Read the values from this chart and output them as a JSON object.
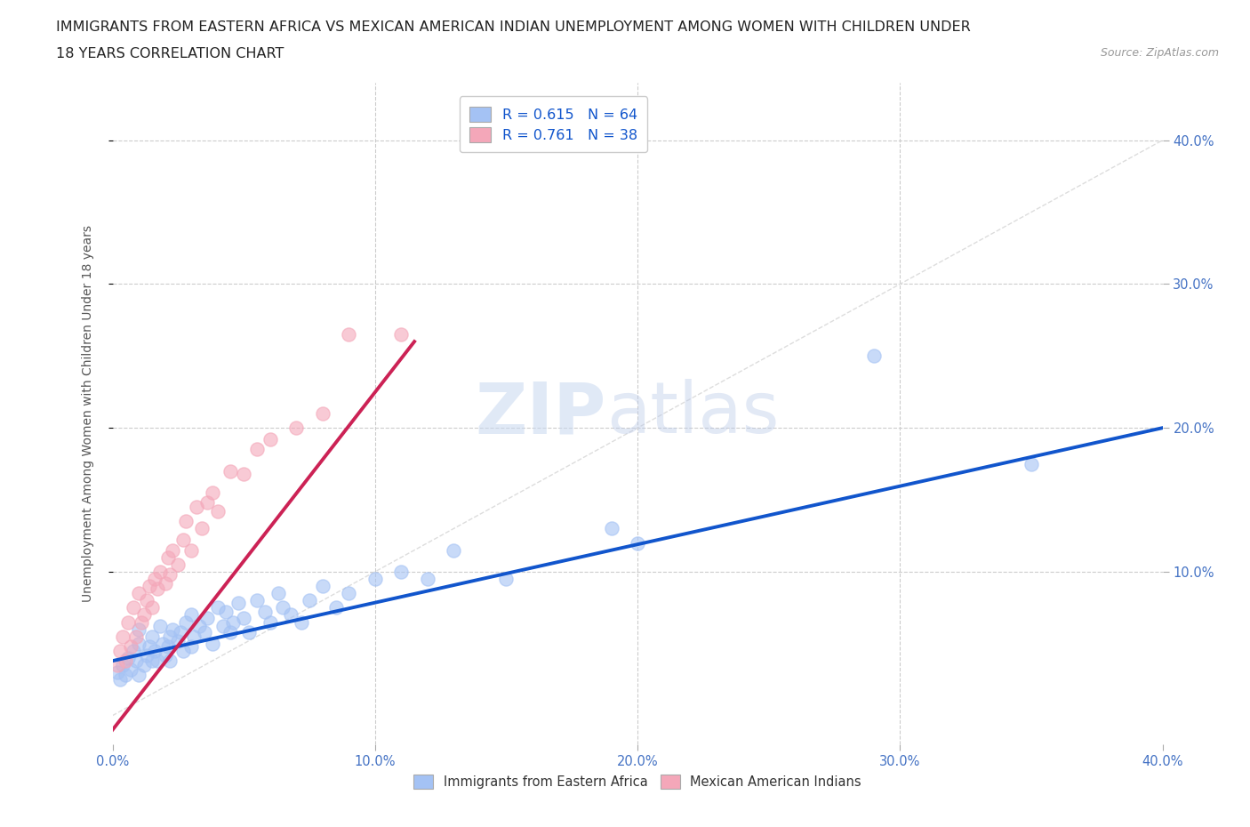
{
  "title_line1": "IMMIGRANTS FROM EASTERN AFRICA VS MEXICAN AMERICAN INDIAN UNEMPLOYMENT AMONG WOMEN WITH CHILDREN UNDER",
  "title_line2": "18 YEARS CORRELATION CHART",
  "source": "Source: ZipAtlas.com",
  "ylabel": "Unemployment Among Women with Children Under 18 years",
  "xlim": [
    0.0,
    0.4
  ],
  "ylim": [
    -0.02,
    0.44
  ],
  "xticks": [
    0.0,
    0.1,
    0.2,
    0.3,
    0.4
  ],
  "yticks": [
    0.1,
    0.2,
    0.3,
    0.4
  ],
  "xticklabels": [
    "0.0%",
    "10.0%",
    "20.0%",
    "30.0%",
    "40.0%"
  ],
  "yticklabels": [
    "10.0%",
    "20.0%",
    "30.0%",
    "40.0%"
  ],
  "blue_R": 0.615,
  "blue_N": 64,
  "pink_R": 0.761,
  "pink_N": 38,
  "blue_color": "#a4c2f4",
  "pink_color": "#f4a7b9",
  "blue_line_color": "#1155cc",
  "pink_line_color": "#cc2255",
  "legend_label_blue": "Immigrants from Eastern Africa",
  "legend_label_pink": "Mexican American Indians",
  "grid_color": "#cccccc",
  "bg_color": "#ffffff",
  "title_color": "#222222",
  "tick_color": "#4472c4",
  "blue_scatter_x": [
    0.002,
    0.003,
    0.004,
    0.005,
    0.006,
    0.007,
    0.008,
    0.009,
    0.01,
    0.01,
    0.01,
    0.012,
    0.013,
    0.014,
    0.015,
    0.015,
    0.016,
    0.017,
    0.018,
    0.019,
    0.02,
    0.021,
    0.022,
    0.022,
    0.023,
    0.025,
    0.026,
    0.027,
    0.028,
    0.03,
    0.03,
    0.031,
    0.033,
    0.035,
    0.036,
    0.038,
    0.04,
    0.042,
    0.043,
    0.045,
    0.046,
    0.048,
    0.05,
    0.052,
    0.055,
    0.058,
    0.06,
    0.063,
    0.065,
    0.068,
    0.072,
    0.075,
    0.08,
    0.085,
    0.09,
    0.1,
    0.11,
    0.12,
    0.13,
    0.15,
    0.19,
    0.2,
    0.29,
    0.35
  ],
  "blue_scatter_y": [
    0.03,
    0.025,
    0.035,
    0.028,
    0.04,
    0.032,
    0.045,
    0.038,
    0.05,
    0.028,
    0.06,
    0.035,
    0.042,
    0.048,
    0.038,
    0.055,
    0.045,
    0.038,
    0.062,
    0.05,
    0.042,
    0.048,
    0.055,
    0.038,
    0.06,
    0.052,
    0.058,
    0.045,
    0.065,
    0.048,
    0.07,
    0.055,
    0.062,
    0.058,
    0.068,
    0.05,
    0.075,
    0.062,
    0.072,
    0.058,
    0.065,
    0.078,
    0.068,
    0.058,
    0.08,
    0.072,
    0.065,
    0.085,
    0.075,
    0.07,
    0.065,
    0.08,
    0.09,
    0.075,
    0.085,
    0.095,
    0.1,
    0.095,
    0.115,
    0.095,
    0.13,
    0.12,
    0.25,
    0.175
  ],
  "pink_scatter_x": [
    0.002,
    0.003,
    0.004,
    0.005,
    0.006,
    0.007,
    0.008,
    0.009,
    0.01,
    0.011,
    0.012,
    0.013,
    0.014,
    0.015,
    0.016,
    0.017,
    0.018,
    0.02,
    0.021,
    0.022,
    0.023,
    0.025,
    0.027,
    0.028,
    0.03,
    0.032,
    0.034,
    0.036,
    0.038,
    0.04,
    0.045,
    0.05,
    0.055,
    0.06,
    0.07,
    0.08,
    0.09,
    0.11
  ],
  "pink_scatter_y": [
    0.035,
    0.045,
    0.055,
    0.038,
    0.065,
    0.048,
    0.075,
    0.055,
    0.085,
    0.065,
    0.07,
    0.08,
    0.09,
    0.075,
    0.095,
    0.088,
    0.1,
    0.092,
    0.11,
    0.098,
    0.115,
    0.105,
    0.122,
    0.135,
    0.115,
    0.145,
    0.13,
    0.148,
    0.155,
    0.142,
    0.17,
    0.168,
    0.185,
    0.192,
    0.2,
    0.21,
    0.265,
    0.265
  ],
  "blue_line_x0": 0.0,
  "blue_line_x1": 0.4,
  "blue_line_y0": 0.038,
  "blue_line_y1": 0.2,
  "pink_line_x0": 0.0,
  "pink_line_x1": 0.115,
  "pink_line_y0": -0.01,
  "pink_line_y1": 0.26
}
